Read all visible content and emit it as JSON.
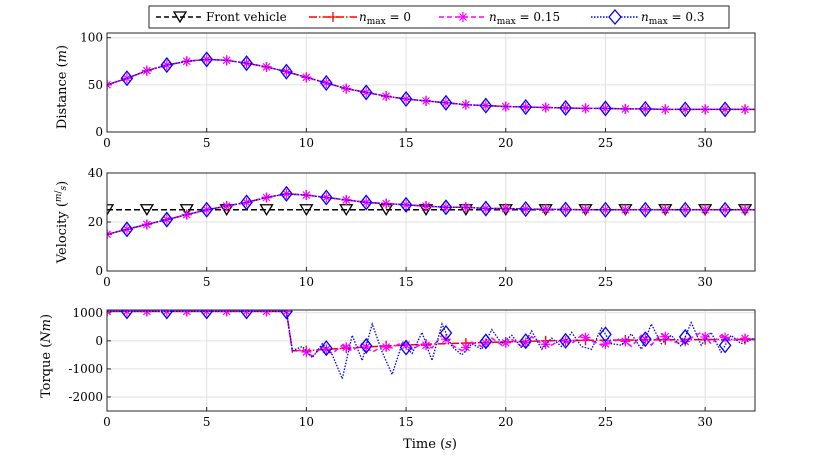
{
  "chart_data": [
    {
      "type": "line",
      "panel": "distance",
      "ylabel": "Distance (m)",
      "xlabel": "",
      "xlim": [
        0,
        32.5
      ],
      "ylim": [
        0,
        105
      ],
      "xticks": [
        "0",
        "5",
        "10",
        "15",
        "20",
        "25",
        "30"
      ],
      "yticks": [
        "0",
        "50",
        "100"
      ],
      "ytick_values": [
        0,
        50,
        100
      ],
      "series": [
        {
          "name": "n_max = 0",
          "x": [
            0,
            1,
            2,
            3,
            4,
            5,
            6,
            7,
            8,
            9,
            10,
            11,
            12,
            13,
            14,
            15,
            16,
            17,
            18,
            19,
            20,
            21,
            22,
            23,
            24,
            25,
            26,
            27,
            28,
            29,
            30,
            31,
            32.5
          ],
          "values": [
            50,
            57,
            65,
            71,
            75,
            77,
            76,
            73,
            69,
            64,
            58,
            52,
            46,
            42,
            38,
            35,
            33,
            31,
            29,
            28,
            27,
            26.5,
            26,
            25.5,
            25,
            25,
            24.5,
            24.5,
            24,
            24,
            24,
            24,
            24
          ]
        },
        {
          "name": "n_max = 0.15",
          "x": [
            0,
            1,
            2,
            3,
            4,
            5,
            6,
            7,
            8,
            9,
            10,
            11,
            12,
            13,
            14,
            15,
            16,
            17,
            18,
            19,
            20,
            21,
            22,
            23,
            24,
            25,
            26,
            27,
            28,
            29,
            30,
            31,
            32.5
          ],
          "values": [
            50,
            57,
            65,
            71,
            75,
            77,
            76,
            73,
            69,
            64,
            58,
            52,
            46,
            42,
            38,
            35,
            33,
            31,
            29,
            28,
            27,
            26.5,
            26,
            25.5,
            25,
            25,
            24.5,
            24.5,
            24,
            24,
            24,
            24,
            24
          ]
        },
        {
          "name": "n_max = 0.3",
          "x": [
            0,
            1,
            2,
            3,
            4,
            5,
            6,
            7,
            8,
            9,
            10,
            11,
            12,
            13,
            14,
            15,
            16,
            17,
            18,
            19,
            20,
            21,
            22,
            23,
            24,
            25,
            26,
            27,
            28,
            29,
            30,
            31,
            32.5
          ],
          "values": [
            50,
            57,
            65,
            71,
            75,
            77,
            76,
            73,
            69,
            64,
            58,
            52,
            46,
            42,
            38,
            35,
            33,
            31,
            29,
            28,
            27,
            26.5,
            26,
            25.5,
            25,
            25,
            24.5,
            24.5,
            24,
            24,
            24,
            24,
            24
          ]
        }
      ]
    },
    {
      "type": "line",
      "panel": "velocity",
      "ylabel": "Velocity (m/s)",
      "xlabel": "",
      "xlim": [
        0,
        32.5
      ],
      "ylim": [
        0,
        40
      ],
      "xticks": [
        "0",
        "5",
        "10",
        "15",
        "20",
        "25",
        "30"
      ],
      "yticks": [
        "0",
        "20",
        "40"
      ],
      "ytick_values": [
        0,
        20,
        40
      ],
      "series": [
        {
          "name": "Front vehicle",
          "x": [
            0,
            32.5
          ],
          "values": [
            25,
            25
          ]
        },
        {
          "name": "n_max = 0",
          "x": [
            0,
            1,
            2,
            3,
            4,
            5,
            6,
            7,
            8,
            9,
            10,
            11,
            12,
            13,
            14,
            15,
            16,
            17,
            18,
            19,
            20,
            21,
            22,
            23,
            24,
            25,
            26,
            27,
            28,
            29,
            30,
            31,
            32.5
          ],
          "values": [
            15,
            17,
            19,
            21,
            23,
            25,
            26.5,
            28,
            30,
            31.5,
            31,
            30,
            29,
            28,
            27.5,
            27,
            26.5,
            26,
            26,
            25.5,
            25.5,
            25.3,
            25.2,
            25.1,
            25,
            25,
            25,
            25,
            25,
            25,
            25,
            25,
            25
          ]
        },
        {
          "name": "n_max = 0.15",
          "x": [
            0,
            1,
            2,
            3,
            4,
            5,
            6,
            7,
            8,
            9,
            10,
            11,
            12,
            13,
            14,
            15,
            16,
            17,
            18,
            19,
            20,
            21,
            22,
            23,
            24,
            25,
            26,
            27,
            28,
            29,
            30,
            31,
            32.5
          ],
          "values": [
            15,
            17,
            19,
            21,
            23,
            25,
            26.5,
            28,
            30,
            31.5,
            31,
            30,
            29,
            28,
            27.5,
            27,
            26.5,
            26,
            26,
            25.5,
            25.5,
            25.3,
            25.2,
            25.1,
            25,
            25,
            25,
            25,
            25,
            25,
            25,
            25,
            25
          ]
        },
        {
          "name": "n_max = 0.3",
          "x": [
            0,
            1,
            2,
            3,
            4,
            5,
            6,
            7,
            8,
            9,
            10,
            11,
            12,
            13,
            14,
            15,
            16,
            17,
            18,
            19,
            20,
            21,
            22,
            23,
            24,
            25,
            26,
            27,
            28,
            29,
            30,
            31,
            32.5
          ],
          "values": [
            15,
            17,
            19,
            21,
            23,
            25,
            26.5,
            28,
            30,
            31.5,
            31,
            30,
            29,
            28,
            27.5,
            27,
            26.5,
            26,
            26,
            25.5,
            25.5,
            25.3,
            25.2,
            25.1,
            25,
            25,
            25,
            25,
            25,
            25,
            25,
            25,
            25
          ]
        }
      ]
    },
    {
      "type": "line",
      "panel": "torque",
      "ylabel": "Torque (Nm)",
      "xlabel": "Time (s)",
      "xlim": [
        0,
        32.5
      ],
      "ylim": [
        -2500,
        1100
      ],
      "xticks": [
        "0",
        "5",
        "10",
        "15",
        "20",
        "25",
        "30"
      ],
      "yticks": [
        "-2000",
        "-1000",
        "0",
        "1000"
      ],
      "ytick_values": [
        -2000,
        -1000,
        0,
        1000
      ],
      "series": [
        {
          "name": "n_max = 0",
          "x": [
            0,
            9,
            9.3,
            10,
            11,
            12,
            13,
            14,
            15,
            16,
            17,
            18,
            19,
            20,
            21,
            22,
            23,
            24,
            25,
            26,
            27,
            28,
            29,
            30,
            31,
            32.5
          ],
          "values": [
            1050,
            1050,
            -350,
            -350,
            -300,
            -260,
            -220,
            -180,
            -150,
            -120,
            -100,
            -80,
            -60,
            -40,
            -20,
            0,
            10,
            20,
            25,
            30,
            35,
            40,
            40,
            45,
            50,
            50
          ]
        },
        {
          "name": "n_max = 0.15",
          "x": [
            0,
            9,
            9.3,
            9.8,
            10.3,
            10.8,
            11.3,
            11.8,
            12.3,
            12.8,
            13.3,
            13.8,
            14.3,
            14.8,
            15.3,
            15.8,
            16.3,
            16.8,
            17.3,
            17.8,
            18.3,
            18.8,
            19.3,
            19.8,
            20.3,
            20.8,
            21.3,
            21.8,
            22.3,
            22.8,
            23.3,
            23.8,
            24.3,
            24.8,
            25.3,
            25.8,
            26.3,
            26.8,
            27.3,
            27.8,
            28.3,
            28.8,
            29.3,
            29.8,
            30.3,
            30.8,
            31.3,
            31.8,
            32.5
          ],
          "values": [
            1050,
            1050,
            -400,
            -300,
            -550,
            -200,
            -450,
            -150,
            -350,
            -100,
            -400,
            -200,
            -250,
            -50,
            -300,
            -100,
            -250,
            200,
            -150,
            -350,
            -50,
            -200,
            100,
            -150,
            50,
            -200,
            150,
            -100,
            -150,
            50,
            -100,
            200,
            0,
            -150,
            -50,
            100,
            -200,
            200,
            -150,
            250,
            0,
            -100,
            100,
            300,
            -100,
            200,
            0,
            100,
            50
          ]
        },
        {
          "name": "n_max = 0.3",
          "x": [
            0,
            9,
            9.3,
            9.8,
            10.3,
            10.8,
            11.3,
            11.8,
            12.3,
            12.8,
            13.3,
            13.8,
            14.3,
            14.8,
            15.3,
            15.8,
            16.3,
            16.8,
            17.3,
            17.8,
            18.3,
            18.8,
            19.3,
            19.8,
            20.3,
            20.8,
            21.3,
            21.8,
            22.3,
            22.8,
            23.3,
            23.8,
            24.3,
            24.8,
            25.3,
            25.8,
            26.3,
            26.8,
            27.3,
            27.8,
            28.3,
            28.8,
            29.3,
            29.8,
            30.3,
            30.8,
            31.3,
            31.8,
            32.5
          ],
          "values": [
            1050,
            1050,
            -350,
            -200,
            -600,
            -100,
            -500,
            -1350,
            200,
            -700,
            600,
            -400,
            -1200,
            -100,
            -450,
            300,
            -700,
            600,
            -200,
            -500,
            -100,
            -300,
            400,
            -100,
            200,
            -250,
            350,
            -300,
            100,
            -200,
            300,
            -200,
            -300,
            450,
            -100,
            -150,
            250,
            -300,
            600,
            -100,
            200,
            -200,
            650,
            -150,
            300,
            -400,
            200,
            -100,
            100
          ]
        }
      ]
    }
  ],
  "legend": {
    "entries": [
      "Front vehicle",
      "n_max = 0",
      "n_max = 0.15",
      "n_max = 0.3"
    ],
    "colors": [
      "#000000",
      "#ff0000",
      "#ff00ff",
      "#0000ff"
    ],
    "location": "top-center"
  },
  "text": {
    "legend_front": "Front vehicle",
    "legend_n_sym": "n",
    "legend_n_sub": "max",
    "legend_n0_val": " = 0",
    "legend_n015_val": " = 0.15",
    "legend_n03_val": " = 0.3",
    "distance_ylabel_word": "Distance (",
    "distance_ylabel_unit": "m",
    "distance_ylabel_close": ")",
    "velocity_ylabel_word": "Velocity (",
    "velocity_ylabel_num": "m",
    "velocity_ylabel_den": "s",
    "velocity_ylabel_close": ")",
    "torque_ylabel_word": "Torque (",
    "torque_ylabel_unit": "Nm",
    "torque_ylabel_close": ")",
    "xlabel_word": "Time (",
    "xlabel_unit": "s",
    "xlabel_close": ")"
  }
}
